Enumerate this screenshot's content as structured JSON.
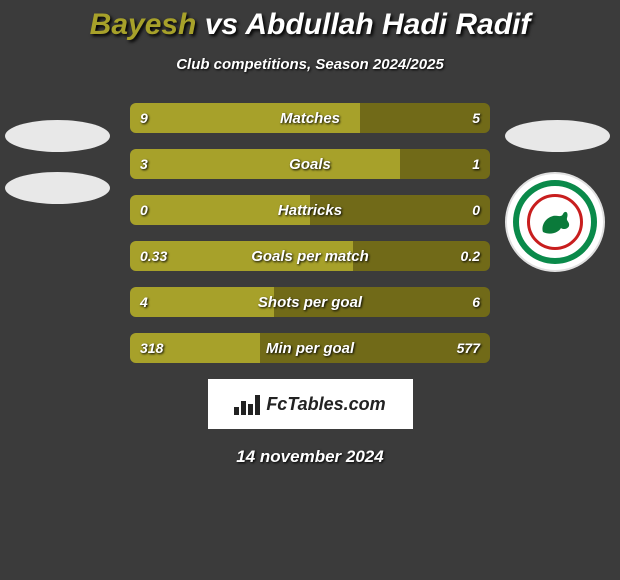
{
  "background_color": "#3b3b3b",
  "text_color": "#ffffff",
  "title": {
    "player1": "Bayesh",
    "vs": "vs",
    "player2": "Abdullah Hadi Radif",
    "player1_color": "#a7a12a",
    "player2_color": "#ffffff",
    "fontsize": 30
  },
  "subtitle": "Club competitions, Season 2024/2025",
  "bars": {
    "left_color": "#a7a12a",
    "right_color": "#716a18",
    "height": 30,
    "gap": 16,
    "border_radius": 6,
    "label_fontsize": 15,
    "value_fontsize": 14,
    "rows": [
      {
        "label": "Matches",
        "left_val": "9",
        "right_val": "5",
        "left_pct": 64,
        "right_pct": 36
      },
      {
        "label": "Goals",
        "left_val": "3",
        "right_val": "1",
        "left_pct": 75,
        "right_pct": 25
      },
      {
        "label": "Hattricks",
        "left_val": "0",
        "right_val": "0",
        "left_pct": 50,
        "right_pct": 50
      },
      {
        "label": "Goals per match",
        "left_val": "0.33",
        "right_val": "0.2",
        "left_pct": 62,
        "right_pct": 38
      },
      {
        "label": "Shots per goal",
        "left_val": "4",
        "right_val": "6",
        "left_pct": 40,
        "right_pct": 60
      },
      {
        "label": "Min per goal",
        "left_val": "318",
        "right_val": "577",
        "left_pct": 36,
        "right_pct": 64
      }
    ]
  },
  "badges": {
    "left_ovals": 2,
    "right_ovals": 1,
    "oval_color": "#e8e8e8",
    "club_logo": {
      "outer_ring": "#0a8a4a",
      "inner_ring": "#c81e1e",
      "center_bg": "#ffffff"
    }
  },
  "footer": {
    "brand": "FcTables.com",
    "brand_bg": "#ffffff",
    "brand_text_color": "#222222",
    "date": "14 november 2024"
  }
}
